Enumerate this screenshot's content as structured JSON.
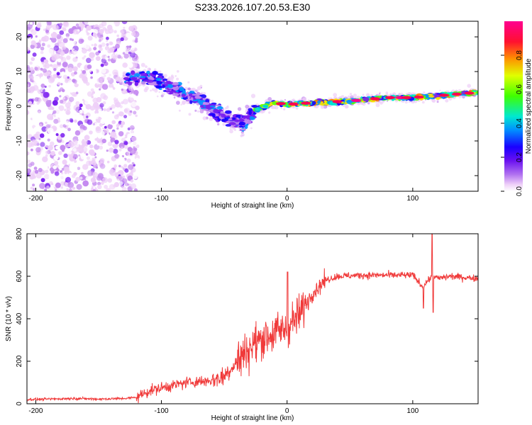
{
  "chart_data": [
    {
      "type": "heatmap",
      "title": "S233.2026.107.20.53.E30",
      "xlabel": "Height of straight line (km)",
      "ylabel": "Frequency (Hz)",
      "xlim": [
        -207,
        152
      ],
      "ylim": [
        -24.5,
        24.5
      ],
      "xticks": [
        -200,
        -100,
        0,
        100
      ],
      "yticks": [
        -20,
        -10,
        0,
        10,
        20
      ],
      "colorbar": {
        "label": "Normalized spectral amplitude",
        "range": [
          0,
          1
        ],
        "ticks": [
          "0.0",
          "0.2",
          "0.4",
          "0.6",
          "0.8"
        ],
        "tick_values": [
          0.0,
          0.2,
          0.4,
          0.6,
          0.8
        ]
      },
      "ridge": {
        "height_km": [
          -125,
          -110,
          -90,
          -70,
          -55,
          -45,
          -35,
          -25,
          -10,
          0,
          20,
          50,
          80,
          100,
          120,
          152
        ],
        "frequency_hz": [
          8,
          8,
          5,
          2,
          -2,
          -4,
          -5,
          -1,
          1,
          0.5,
          1,
          1.5,
          2.5,
          2.5,
          3,
          4
        ]
      },
      "noise_region_km": [
        -207,
        -125
      ],
      "colors": [
        "#ffffff",
        "#eecff8",
        "#c48af0",
        "#7a1ef0",
        "#1a00ff",
        "#0094ff",
        "#00e8d0",
        "#5cff00",
        "#ffe600",
        "#ff8000",
        "#ff0050",
        "#ff0090"
      ]
    },
    {
      "type": "line",
      "xlabel": "Height of straight line (km)",
      "ylabel": "SNR (10 * v/v)",
      "xlim": [
        -207,
        152
      ],
      "ylim": [
        0,
        800
      ],
      "xticks": [
        -200,
        -100,
        0,
        100
      ],
      "yticks": [
        0,
        200,
        400,
        600,
        800
      ],
      "series": [
        {
          "name": "SNR",
          "color": "#f03a3a",
          "x": [
            -207,
            -190,
            -170,
            -150,
            -130,
            -120,
            -110,
            -100,
            -80,
            -60,
            -50,
            -40,
            -30,
            -20,
            -10,
            0,
            10,
            20,
            30,
            40,
            60,
            80,
            100,
            108,
            112,
            116,
            120,
            130,
            152
          ],
          "y": [
            20,
            22,
            25,
            22,
            25,
            30,
            60,
            75,
            100,
            110,
            130,
            200,
            260,
            310,
            330,
            360,
            420,
            520,
            580,
            600,
            605,
            605,
            605,
            550,
            580,
            600,
            590,
            600,
            590
          ]
        }
      ]
    }
  ]
}
